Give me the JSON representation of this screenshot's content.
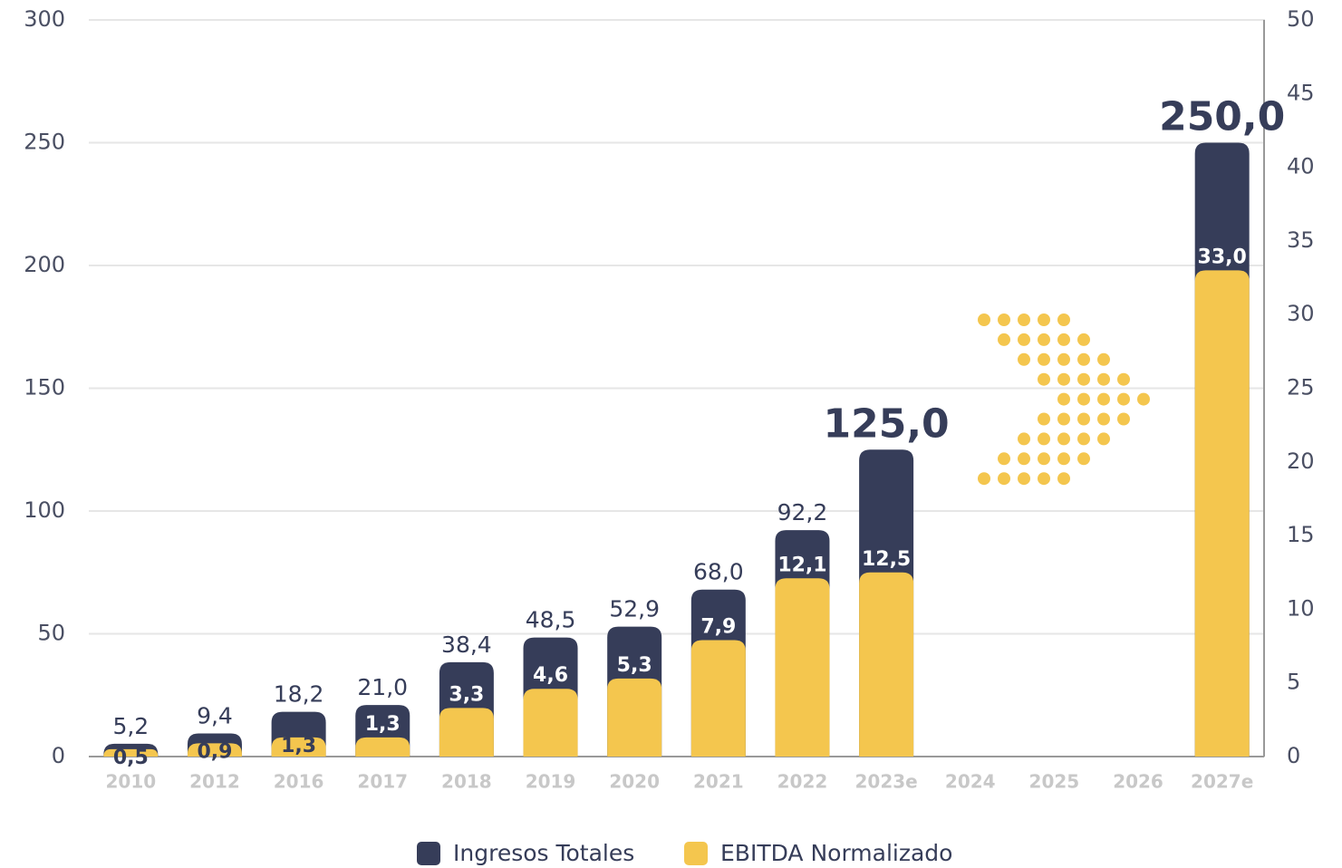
{
  "chart_data": {
    "type": "bar",
    "categories": [
      "2010",
      "2012",
      "2016",
      "2017",
      "2018",
      "2019",
      "2020",
      "2021",
      "2022",
      "2023e",
      "2024",
      "2025",
      "2026",
      "2027e"
    ],
    "series": [
      {
        "name": "Ingresos Totales",
        "color": "#363d59",
        "values": [
          5.2,
          9.4,
          18.2,
          21.0,
          38.4,
          48.5,
          52.9,
          68.0,
          92.2,
          125.0,
          null,
          null,
          null,
          250.0
        ],
        "value_labels": [
          "5,2",
          "9,4",
          "18,2",
          "21,0",
          "38,4",
          "48,5",
          "52,9",
          "68,0",
          "92,2",
          "125,0",
          null,
          null,
          null,
          "250,0"
        ]
      },
      {
        "name": "EBITDA Normalizado",
        "color": "#f4c64e",
        "axis": "y2",
        "values": [
          0.5,
          0.9,
          1.3,
          1.3,
          3.3,
          4.6,
          5.3,
          7.9,
          12.1,
          12.5,
          null,
          null,
          null,
          33.0
        ],
        "value_labels": [
          "0,5",
          "0,9",
          "1,3",
          "1,3",
          "3,3",
          "4,6",
          "5,3",
          "7,9",
          "12,1",
          "12,5",
          null,
          null,
          null,
          "33,0"
        ]
      }
    ],
    "ylim": [
      0,
      300
    ],
    "yticks": [
      0,
      50,
      100,
      150,
      200,
      250,
      300
    ],
    "y2lim": [
      0,
      50
    ],
    "y2ticks": [
      0,
      5,
      10,
      15,
      20,
      25,
      30,
      35,
      40,
      45,
      50
    ],
    "grid": true,
    "legend": "bottom"
  }
}
